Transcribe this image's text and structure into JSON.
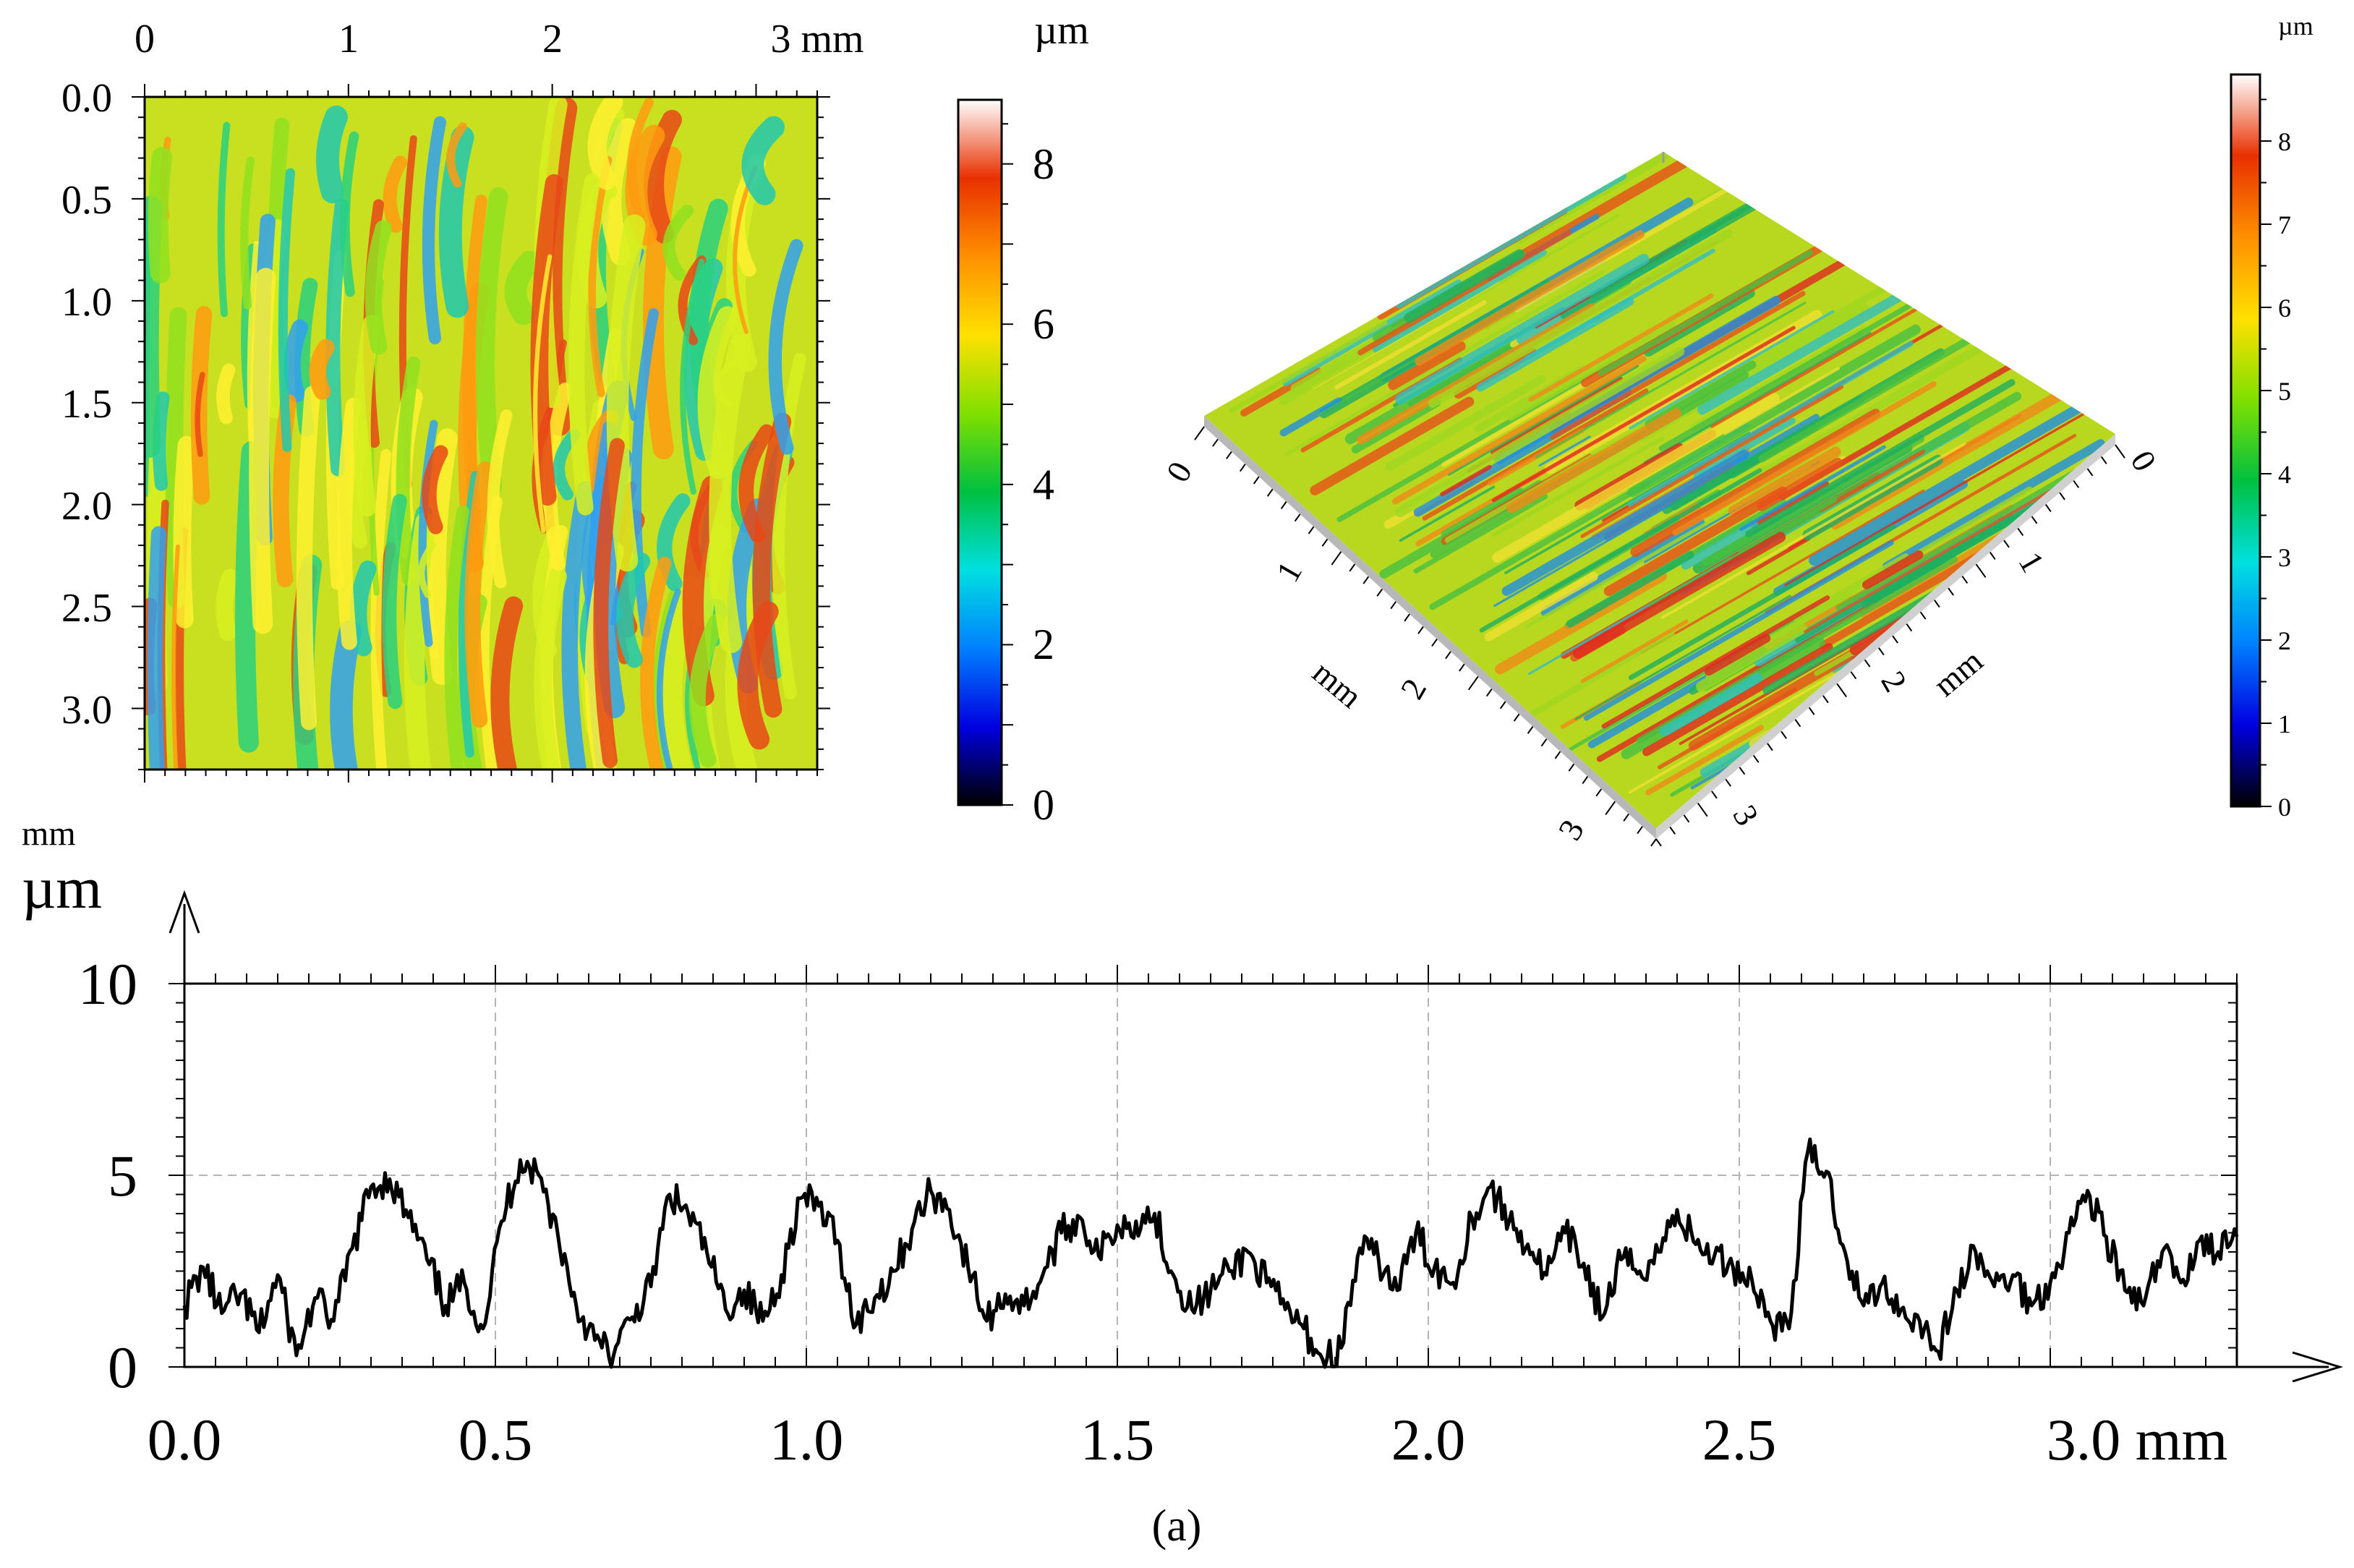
{
  "figure_label": "(a)",
  "colors": {
    "ramp": [
      "#000000",
      "#0000e0",
      "#0080ff",
      "#00e0e0",
      "#00c040",
      "#80e000",
      "#ffe000",
      "#ff9000",
      "#e83000",
      "#ffffff"
    ],
    "line": "#000000",
    "grid": "#b4b4b4"
  },
  "chart_data": [
    {
      "id": "height-map-2d",
      "type": "heatmap",
      "title": "",
      "x_axis": {
        "ticks": [
          "0",
          "1",
          "2",
          "3 mm"
        ],
        "tick_values": [
          0,
          1,
          2,
          3
        ],
        "range": [
          0,
          3.3
        ]
      },
      "y_axis": {
        "ticks": [
          "0.0",
          "0.5",
          "1.0",
          "1.5",
          "2.0",
          "2.5",
          "3.0"
        ],
        "tick_values": [
          0,
          0.5,
          1.0,
          1.5,
          2.0,
          2.5,
          3.0
        ],
        "range": [
          0,
          3.3
        ],
        "unit_label": "mm"
      },
      "colorbar": {
        "unit": "µm",
        "ticks": [
          "0",
          "2",
          "4",
          "6",
          "8"
        ],
        "tick_values": [
          0,
          2,
          4,
          6,
          8
        ],
        "range": [
          0,
          8.8
        ]
      },
      "description": "Surface height map with curved, near-vertical streaks"
    },
    {
      "id": "height-map-3d",
      "type": "heatmap",
      "title": "",
      "left_axis": {
        "ticks": [
          "0",
          "1",
          "2",
          "3"
        ],
        "label": "mm"
      },
      "right_axis": {
        "ticks": [
          "0",
          "1",
          "2",
          "3"
        ],
        "label": "mm"
      },
      "colorbar": {
        "unit": "µm",
        "ticks": [
          "0",
          "1",
          "2",
          "3",
          "4",
          "5",
          "6",
          "7",
          "8"
        ],
        "tick_values": [
          0,
          1,
          2,
          3,
          4,
          5,
          6,
          7,
          8
        ],
        "range": [
          0,
          8.8
        ]
      }
    },
    {
      "id": "profile",
      "type": "line",
      "title": "",
      "xlabel": "mm",
      "ylabel": "µm",
      "x_ticks": [
        "0.0",
        "0.5",
        "1.0",
        "1.5",
        "2.0",
        "2.5",
        "3.0 mm"
      ],
      "x_tick_values": [
        0,
        0.5,
        1.0,
        1.5,
        2.0,
        2.5,
        3.0
      ],
      "y_ticks": [
        "0",
        "5",
        "10"
      ],
      "y_tick_values": [
        0,
        5,
        10
      ],
      "xlim": [
        0,
        3.3
      ],
      "ylim": [
        0,
        10
      ],
      "grid": true,
      "series": [
        {
          "name": "profile",
          "x": [
            0.0,
            0.03,
            0.06,
            0.09,
            0.12,
            0.15,
            0.18,
            0.21,
            0.24,
            0.27,
            0.3,
            0.33,
            0.36,
            0.39,
            0.42,
            0.45,
            0.48,
            0.51,
            0.54,
            0.57,
            0.6,
            0.63,
            0.66,
            0.69,
            0.72,
            0.75,
            0.78,
            0.81,
            0.84,
            0.87,
            0.9,
            0.93,
            0.96,
            0.99,
            1.02,
            1.05,
            1.08,
            1.11,
            1.14,
            1.17,
            1.2,
            1.23,
            1.26,
            1.29,
            1.32,
            1.35,
            1.38,
            1.41,
            1.44,
            1.47,
            1.5,
            1.53,
            1.56,
            1.59,
            1.62,
            1.65,
            1.68,
            1.71,
            1.74,
            1.77,
            1.8,
            1.83,
            1.86,
            1.89,
            1.92,
            1.95,
            1.98,
            2.01,
            2.04,
            2.07,
            2.1,
            2.13,
            2.16,
            2.19,
            2.22,
            2.25,
            2.28,
            2.31,
            2.34,
            2.37,
            2.4,
            2.43,
            2.46,
            2.49,
            2.52,
            2.55,
            2.58,
            2.61,
            2.64,
            2.67,
            2.7,
            2.73,
            2.76,
            2.79,
            2.82,
            2.85,
            2.88,
            2.91,
            2.94,
            2.97,
            3.0,
            3.03,
            3.06,
            3.09,
            3.12,
            3.15,
            3.18,
            3.21,
            3.24,
            3.27,
            3.3
          ],
          "values": [
            1.6,
            2.6,
            1.4,
            1.9,
            0.9,
            2.4,
            0.3,
            1.8,
            1.2,
            3.1,
            4.7,
            4.9,
            3.9,
            2.8,
            1.6,
            2.2,
            1.0,
            3.8,
            5.4,
            5.0,
            3.5,
            1.6,
            0.7,
            0.3,
            1.3,
            2.1,
            4.5,
            4.0,
            3.0,
            1.5,
            2.0,
            1.2,
            2.4,
            4.4,
            4.2,
            3.3,
            1.1,
            1.8,
            2.5,
            3.6,
            4.6,
            4.1,
            2.6,
            1.2,
            1.9,
            1.6,
            2.4,
            3.5,
            3.9,
            2.9,
            3.7,
            3.8,
            4.0,
            2.4,
            1.5,
            2.0,
            2.5,
            3.0,
            2.2,
            1.5,
            1.0,
            0.2,
            0.5,
            3.1,
            2.8,
            2.0,
            3.5,
            2.6,
            2.2,
            3.9,
            4.7,
            3.8,
            3.2,
            2.4,
            3.5,
            2.7,
            1.3,
            2.8,
            2.5,
            3.0,
            4.1,
            3.2,
            2.9,
            2.6,
            2.3,
            1.2,
            1.0,
            5.6,
            5.1,
            3.0,
            1.6,
            2.2,
            1.5,
            1.2,
            0.4,
            2.0,
            3.0,
            2.1,
            2.4,
            1.6,
            2.2,
            3.5,
            4.6,
            3.4,
            2.0,
            1.6,
            3.0,
            2.2,
            3.3,
            3.0,
            3.4
          ]
        }
      ]
    }
  ]
}
